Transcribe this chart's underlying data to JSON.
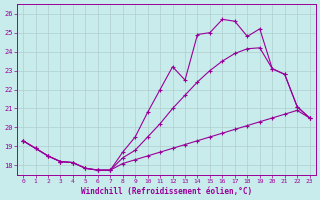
{
  "xlabel": "Windchill (Refroidissement éolien,°C)",
  "bg_color": "#c8ecec",
  "grid_color": "#b0cece",
  "line_color": "#990099",
  "xlim": [
    -0.5,
    23.5
  ],
  "ylim": [
    17.5,
    26.5
  ],
  "xticks": [
    0,
    1,
    2,
    3,
    4,
    5,
    6,
    7,
    8,
    9,
    10,
    11,
    12,
    13,
    14,
    15,
    16,
    17,
    18,
    19,
    20,
    21,
    22,
    23
  ],
  "yticks": [
    18,
    19,
    20,
    21,
    22,
    23,
    24,
    25,
    26
  ],
  "line1_x": [
    0,
    1,
    2,
    3,
    4,
    5,
    6,
    7,
    8,
    9,
    10,
    11,
    12,
    13,
    14,
    15,
    16,
    17,
    18,
    19,
    20,
    21,
    22,
    23
  ],
  "line1_y": [
    19.3,
    18.9,
    18.5,
    18.2,
    18.15,
    17.85,
    17.75,
    17.75,
    18.7,
    19.5,
    20.8,
    22.0,
    23.2,
    22.5,
    24.9,
    25.0,
    25.7,
    25.6,
    24.8,
    25.2,
    23.1,
    22.8,
    21.1,
    20.5
  ],
  "line2_x": [
    0,
    1,
    2,
    3,
    4,
    5,
    6,
    7,
    8,
    9,
    10,
    11,
    12,
    13,
    14,
    15,
    16,
    17,
    18,
    19,
    20,
    21,
    22,
    23
  ],
  "line2_y": [
    19.3,
    18.9,
    18.5,
    18.2,
    18.15,
    17.85,
    17.75,
    17.75,
    18.4,
    18.8,
    19.5,
    20.2,
    21.0,
    21.7,
    22.4,
    23.0,
    23.5,
    23.9,
    24.15,
    24.2,
    23.1,
    22.8,
    21.1,
    20.5
  ],
  "line3_x": [
    0,
    1,
    2,
    3,
    4,
    5,
    6,
    7,
    8,
    9,
    10,
    11,
    12,
    13,
    14,
    15,
    16,
    17,
    18,
    19,
    20,
    21,
    22,
    23
  ],
  "line3_y": [
    19.3,
    18.9,
    18.5,
    18.2,
    18.15,
    17.85,
    17.75,
    17.75,
    18.1,
    18.3,
    18.5,
    18.7,
    18.9,
    19.1,
    19.3,
    19.5,
    19.7,
    19.9,
    20.1,
    20.3,
    20.5,
    20.7,
    20.9,
    20.5
  ]
}
